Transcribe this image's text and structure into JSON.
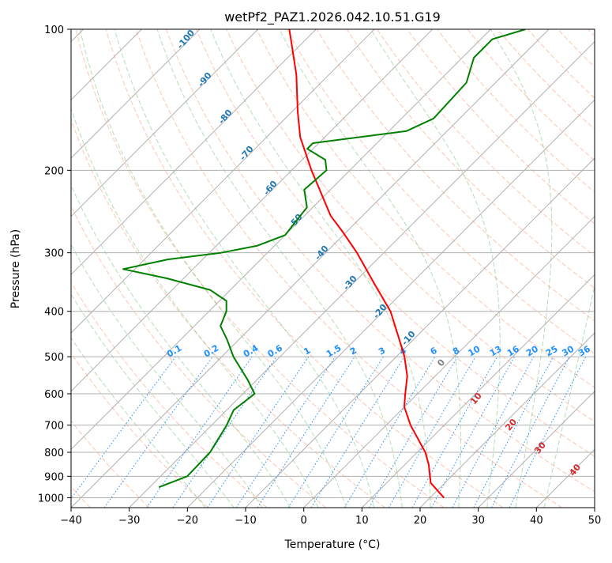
{
  "chart_data": {
    "type": "line",
    "title": "wetPf2_PAZ1.2026.042.10.51.G19",
    "xlabel": "Temperature (°C)",
    "ylabel": "Pressure (hPa)",
    "xlim": [
      -40,
      50
    ],
    "ylim": [
      1050,
      100
    ],
    "y_scale": "log",
    "x_ticks": [
      -40,
      -30,
      -20,
      -10,
      0,
      10,
      20,
      30,
      40,
      50
    ],
    "x_tick_labels": [
      "−40",
      "−30",
      "−20",
      "−10",
      "0",
      "10",
      "20",
      "30",
      "40",
      "50"
    ],
    "y_ticks": [
      100,
      200,
      300,
      400,
      500,
      600,
      700,
      800,
      900,
      1000
    ],
    "y_tick_labels": [
      "100",
      "200",
      "300",
      "400",
      "500",
      "600",
      "700",
      "800",
      "900",
      "1000"
    ],
    "grid": true,
    "colors": {
      "temperature": "#ff0000",
      "dewpoint": "#008000",
      "dry_adiabat": "#ff7f50",
      "moist_adiabat": "#2ca02c",
      "mixing_ratio": "#1e90ff",
      "isotherm": "#808080",
      "mixing_ratio_label": "#1e90ff",
      "dry_adiabat_label": "#1f77b4",
      "moist_adiabat_label": "#d62728"
    },
    "series": [
      {
        "role": "temperature",
        "color": "#ff0000",
        "points": [
          {
            "p": 1000,
            "t": 22.4
          },
          {
            "p": 930,
            "t": 17.6
          },
          {
            "p": 850,
            "t": 14.1
          },
          {
            "p": 800,
            "t": 11.4
          },
          {
            "p": 700,
            "t": 4.2
          },
          {
            "p": 640,
            "t": 0.0
          },
          {
            "p": 600,
            "t": -2.1
          },
          {
            "p": 550,
            "t": -4.8
          },
          {
            "p": 500,
            "t": -8.6
          },
          {
            "p": 450,
            "t": -13.4
          },
          {
            "p": 400,
            "t": -18.8
          },
          {
            "p": 350,
            "t": -26.2
          },
          {
            "p": 300,
            "t": -34.6
          },
          {
            "p": 270,
            "t": -40.8
          },
          {
            "p": 250,
            "t": -45.5
          },
          {
            "p": 200,
            "t": -56.6
          },
          {
            "p": 170,
            "t": -64.2
          },
          {
            "p": 150,
            "t": -69.0
          },
          {
            "p": 125,
            "t": -75.6
          },
          {
            "p": 100,
            "t": -84.6
          }
        ]
      },
      {
        "role": "dewpoint",
        "color": "#008000",
        "points": [
          {
            "p": 950,
            "t": -28.4
          },
          {
            "p": 900,
            "t": -25.4
          },
          {
            "p": 800,
            "t": -25.6
          },
          {
            "p": 700,
            "t": -27.4
          },
          {
            "p": 650,
            "t": -28.8
          },
          {
            "p": 600,
            "t": -28.0
          },
          {
            "p": 560,
            "t": -31.6
          },
          {
            "p": 500,
            "t": -38.0
          },
          {
            "p": 460,
            "t": -42.0
          },
          {
            "p": 430,
            "t": -45.5
          },
          {
            "p": 400,
            "t": -47.0
          },
          {
            "p": 380,
            "t": -48.8
          },
          {
            "p": 360,
            "t": -53.5
          },
          {
            "p": 340,
            "t": -63.0
          },
          {
            "p": 325,
            "t": -72.0
          },
          {
            "p": 310,
            "t": -66.0
          },
          {
            "p": 300,
            "t": -58.0
          },
          {
            "p": 290,
            "t": -53.0
          },
          {
            "p": 275,
            "t": -50.0
          },
          {
            "p": 240,
            "t": -51.0
          },
          {
            "p": 220,
            "t": -54.5
          },
          {
            "p": 200,
            "t": -54.0
          },
          {
            "p": 190,
            "t": -56.0
          },
          {
            "p": 180,
            "t": -61.0
          },
          {
            "p": 175,
            "t": -61.0
          },
          {
            "p": 165,
            "t": -47.0
          },
          {
            "p": 155,
            "t": -44.5
          },
          {
            "p": 130,
            "t": -45.0
          },
          {
            "p": 115,
            "t": -48.0
          },
          {
            "p": 105,
            "t": -48.0
          },
          {
            "p": 100,
            "t": -44.0
          }
        ]
      }
    ],
    "isotherms": [
      -150,
      -140,
      -130,
      -120,
      -110,
      -100,
      -90,
      -80,
      -70,
      -60,
      -50,
      -40,
      -30,
      -20,
      -10,
      0,
      10,
      20,
      30,
      40,
      50
    ],
    "dry_adiabats_c": [
      -40,
      -30,
      -20,
      -10,
      0,
      10,
      20,
      30,
      40,
      50,
      60,
      70,
      80,
      90,
      100,
      110,
      120,
      130,
      140,
      150,
      160,
      170,
      180,
      190,
      200
    ],
    "moist_adiabats_c": [
      -20,
      -15,
      -10,
      -5,
      0,
      5,
      10,
      15,
      20,
      25,
      30,
      35,
      40
    ],
    "mixing_ratios_gkg": [
      0.1,
      0.2,
      0.4,
      0.6,
      1,
      1.5,
      2,
      3,
      4,
      6,
      8,
      10,
      13,
      16,
      20,
      25,
      30,
      36
    ],
    "mixing_ratio_labels": [
      "0.1",
      "0.2",
      "0.4",
      "0.6",
      "1",
      "1.5",
      "2",
      "3",
      "4",
      "6",
      "8",
      "10",
      "13",
      "16",
      "20",
      "25",
      "30",
      "36"
    ],
    "dry_adiabat_labels": [
      {
        "text": "-100",
        "t": -100
      },
      {
        "text": "-90",
        "t": -90
      },
      {
        "text": "-80",
        "t": -80
      },
      {
        "text": "-70",
        "t": -70
      },
      {
        "text": "-60",
        "t": -60
      },
      {
        "text": "-50",
        "t": -50
      },
      {
        "text": "-40",
        "t": -40
      },
      {
        "text": "-30",
        "t": -30
      },
      {
        "text": "-20",
        "t": -20
      },
      {
        "text": "-10",
        "t": -10
      }
    ],
    "moist_adiabat_labels": [
      {
        "text": "0",
        "t": 24,
        "p": 520,
        "color": "#808080"
      },
      {
        "text": "10",
        "t": 30,
        "p": 620,
        "color": "#d62728"
      },
      {
        "text": "20",
        "t": 36,
        "p": 705,
        "color": "#d62728"
      },
      {
        "text": "30",
        "t": 41,
        "p": 790,
        "color": "#d62728"
      },
      {
        "text": "40",
        "t": 47,
        "p": 880,
        "color": "#d62728"
      }
    ]
  }
}
